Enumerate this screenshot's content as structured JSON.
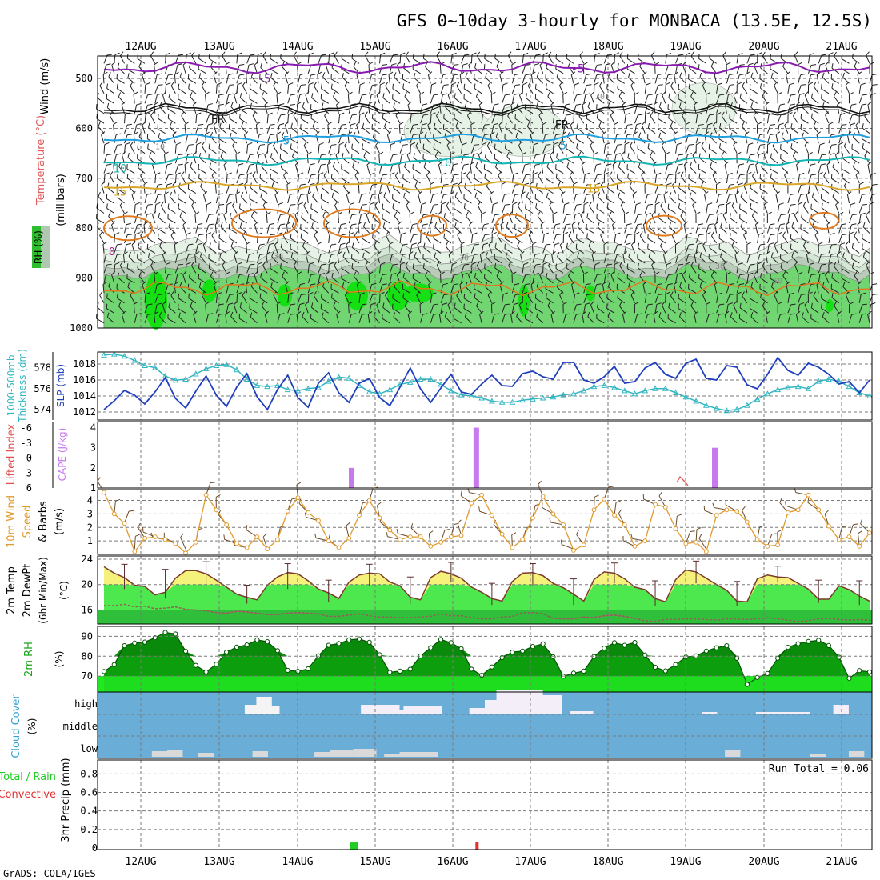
{
  "title": "GFS 0~10day 3-hourly for MONBACA (13.5E, 12.5S)",
  "footer": "GrADS: COLA/IGES",
  "dates": [
    "12AUG",
    "13AUG",
    "14AUG",
    "15AUG",
    "16AUG",
    "17AUG",
    "18AUG",
    "19AUG",
    "20AUG",
    "21AUG"
  ],
  "colors": {
    "rh_dark": "#2dbd2d",
    "rh_mid": "#71d671",
    "rh_light": "#e6f2e6",
    "cloud_bg": "#6aadd6",
    "cloud_fill": "#d9d9d9",
    "high_cloud": "#f4eef8",
    "cape": "#c779f0",
    "slp": "#1f3fbf",
    "thickness": "#33b6c2",
    "wind10": "#e09a2d",
    "temp_fill": "#4de84d",
    "rh2_dark": "#0c9e0c",
    "rh2_light": "#22e622"
  },
  "chart_data": [
    {
      "id": "upper_air",
      "type": "heatmap",
      "ylabel_parts": [
        "Wind (m/s)",
        "Temperature (°C)",
        "RH (%)"
      ],
      "ylabel_units": "(millibars)",
      "y_ticks": [
        "500",
        "600",
        "700",
        "800",
        "900",
        "1000"
      ],
      "ylim": [
        455,
        1000
      ],
      "rh_legend_label": "RH (%)",
      "contour_labels": {
        "purple": [
          "-5",
          "-5"
        ],
        "freezing": [
          "FR",
          "FR"
        ],
        "blue": [
          "5",
          "5"
        ],
        "teal": [
          "10",
          "10"
        ],
        "gold": [
          "15",
          "15"
        ],
        "rh_gray": [
          "30",
          "30",
          "50",
          "30",
          "50",
          "10",
          "30"
        ],
        "lowest": "0"
      }
    },
    {
      "id": "slp_thickness",
      "type": "line",
      "ylabel_left": [
        "1000-500mb",
        "Thickness (dm)"
      ],
      "ylabel_right": "SLP (mb)",
      "thickness_ticks": [
        "578",
        "576",
        "574"
      ],
      "slp_ticks": [
        "1018",
        "1016",
        "1014",
        "1012"
      ],
      "thickness_ylim": [
        573,
        579.5
      ],
      "slp_ylim": [
        1011,
        1019.5
      ],
      "series": [
        {
          "name": "SLP (mb)",
          "axis": "slp",
          "values": [
            1012.3,
            1013.4,
            1014.7,
            1014.1,
            1013.0,
            1014.5,
            1016.3,
            1013.7,
            1012.5,
            1014.6,
            1016.5,
            1014.1,
            1012.7,
            1015.1,
            1016.8,
            1013.9,
            1012.3,
            1014.8,
            1016.6,
            1013.8,
            1012.6,
            1015.6,
            1016.9,
            1014.4,
            1013.2,
            1015.6,
            1016.2,
            1013.8,
            1012.8,
            1015.1,
            1017.5,
            1014.9,
            1013.2,
            1015.0,
            1016.7,
            1014.5,
            1014.2,
            1015.5,
            1016.6,
            1015.3,
            1015.2,
            1016.8,
            1017.1,
            1016.4,
            1016.1,
            1018.2,
            1018.2,
            1016.0,
            1015.6,
            1016.4,
            1017.7,
            1015.6,
            1015.8,
            1017.5,
            1018.2,
            1016.7,
            1016.2,
            1018.1,
            1018.6,
            1016.2,
            1016.0,
            1017.8,
            1017.6,
            1015.4,
            1014.9,
            1016.7,
            1018.8,
            1017.2,
            1016.6,
            1018.1,
            1017.6,
            1016.7,
            1015.5,
            1015.8,
            1014.4,
            1016.0
          ]
        },
        {
          "name": "1000-500mb Thickness (dm)",
          "axis": "thickness",
          "values": [
            579.2,
            579.3,
            579.1,
            578.7,
            578.2,
            578.0,
            577.2,
            576.8,
            576.9,
            577.4,
            577.9,
            578.2,
            578.3,
            577.8,
            576.9,
            576.3,
            576.2,
            576.3,
            575.9,
            575.8,
            576.0,
            576.1,
            576.7,
            577.1,
            577.0,
            576.3,
            575.7,
            575.5,
            575.9,
            576.4,
            576.6,
            576.9,
            576.9,
            576.4,
            575.8,
            575.4,
            575.3,
            575.1,
            574.8,
            574.7,
            574.7,
            574.9,
            575.0,
            575.1,
            575.2,
            575.4,
            575.5,
            575.8,
            576.2,
            576.3,
            576.1,
            575.8,
            575.5,
            575.8,
            576.0,
            576.0,
            575.6,
            575.2,
            574.8,
            574.4,
            574.1,
            573.9,
            574.0,
            574.4,
            575.0,
            575.5,
            575.9,
            576.1,
            576.2,
            576.0,
            576.7,
            576.9,
            576.7,
            576.2,
            575.6,
            575.3
          ]
        }
      ]
    },
    {
      "id": "cape_li",
      "type": "bar",
      "ylabel_left": "Lifted Index",
      "ylabel_right": "CAPE (J/kg)",
      "li_ticks": [
        "-6",
        "-3",
        "0",
        "3",
        "6"
      ],
      "cape_ticks": [
        "4",
        "3",
        "2",
        "1"
      ],
      "cape_ylim": [
        1,
        4.3
      ],
      "bars": [
        {
          "x": 32.8,
          "value": 2.0
        },
        {
          "x": 48.9,
          "value": 4.0
        },
        {
          "x": 79.7,
          "value": 3.0
        }
      ]
    },
    {
      "id": "wind10m",
      "type": "line",
      "ylabel_lines": [
        "10m Wind",
        "Speed",
        "& Barbs",
        "(m/s)"
      ],
      "y_ticks": [
        "4",
        "3",
        "2",
        "1"
      ],
      "ylim": [
        0,
        4.8
      ],
      "series": [
        {
          "name": "10m Wind Speed",
          "values": [
            4.6,
            3.0,
            2.3,
            0.2,
            1.2,
            1.3,
            1.1,
            0.8,
            0.1,
            0.9,
            4.4,
            3.3,
            2.2,
            0.8,
            0.5,
            1.3,
            0.4,
            1.1,
            3.2,
            4.2,
            3.1,
            2.5,
            1.0,
            0.5,
            1.2,
            2.9,
            4.0,
            2.7,
            1.8,
            1.1,
            1.3,
            1.3,
            0.6,
            0.9,
            1.3,
            1.4,
            3.8,
            4.4,
            2.9,
            1.5,
            0.5,
            1.1,
            2.7,
            4.3,
            3.0,
            2.2,
            0.3,
            0.7,
            3.3,
            4.1,
            2.9,
            2.2,
            0.6,
            1.0,
            3.7,
            3.5,
            1.9,
            0.8,
            0.9,
            0.2,
            2.9,
            3.3,
            3.2,
            2.4,
            1.1,
            0.6,
            0.7,
            3.1,
            3.3,
            4.4,
            3.3,
            2.1,
            1.1,
            1.3,
            0.6,
            1.6
          ]
        }
      ]
    },
    {
      "id": "temp2m",
      "type": "area",
      "ylabel_lines": [
        "2m Temp",
        "2m DewPt",
        "(6hr Min/Max)"
      ],
      "ylabel_units": "(°C)",
      "y_ticks": [
        "24",
        "20",
        "16"
      ],
      "ylim": [
        13.8,
        24.5
      ],
      "series": [
        {
          "name": "2m Temp",
          "values": [
            22.8,
            21.8,
            21.1,
            19.9,
            19.7,
            18.4,
            18.8,
            21.0,
            22.2,
            22.2,
            21.7,
            20.7,
            19.6,
            18.5,
            18.0,
            17.6,
            19.9,
            21.2,
            21.9,
            21.7,
            20.6,
            19.3,
            18.7,
            17.8,
            20.4,
            21.5,
            21.8,
            21.7,
            20.4,
            19.8,
            18.0,
            17.6,
            21.1,
            22.1,
            21.7,
            21.0,
            19.6,
            18.8,
            17.8,
            17.4,
            20.5,
            21.8,
            21.9,
            21.4,
            20.2,
            19.5,
            18.5,
            17.4,
            20.8,
            22.0,
            21.8,
            20.9,
            19.6,
            19.2,
            17.8,
            17.3,
            20.8,
            22.3,
            22.0,
            21.0,
            20.0,
            19.1,
            17.4,
            17.3,
            20.9,
            21.5,
            21.2,
            21.1,
            20.2,
            19.3,
            17.7,
            17.7,
            19.8,
            19.2,
            18.2,
            17.4
          ]
        },
        {
          "name": "2m DewPt",
          "values": [
            16.7,
            16.7,
            16.9,
            16.5,
            16.6,
            16.2,
            16.3,
            16.5,
            16.1,
            16.0,
            15.9,
            15.6,
            15.5,
            15.8,
            15.7,
            15.5,
            15.3,
            15.3,
            15.5,
            15.6,
            15.5,
            15.4,
            15.0,
            15.0,
            15.2,
            15.4,
            15.1,
            14.9,
            14.9,
            14.8,
            14.8,
            14.9,
            15.0,
            15.4,
            15.1,
            15.1,
            14.8,
            14.6,
            14.6,
            14.9,
            15.0,
            15.6,
            15.6,
            15.4,
            14.7,
            14.6,
            14.6,
            14.9,
            14.8,
            15.1,
            15.2,
            15.0,
            14.7,
            14.3,
            14.2,
            14.5,
            14.5,
            14.6,
            14.6,
            14.5,
            14.4,
            14.6,
            14.6,
            14.5,
            14.6,
            14.8,
            14.6,
            14.4,
            14.2,
            14.3,
            14.6,
            14.7,
            14.5,
            14.4,
            14.5,
            14.4
          ]
        }
      ]
    },
    {
      "id": "rh2m",
      "type": "area",
      "ylabel": "2m RH",
      "ylabel_units": "(%)",
      "y_ticks": [
        "90",
        "80",
        "70"
      ],
      "ylim": [
        62,
        95
      ],
      "series": [
        {
          "name": "2m RH",
          "values": [
            72.3,
            75.8,
            85.3,
            86.6,
            87.1,
            89.3,
            92.0,
            91.2,
            82.5,
            75.4,
            72.1,
            76.0,
            82.1,
            84.6,
            85.7,
            88.2,
            87.3,
            82.8,
            72.9,
            72.4,
            73.7,
            80.2,
            85.5,
            86.4,
            88.2,
            88.7,
            87.0,
            80.7,
            71.9,
            72.5,
            73.5,
            80.1,
            84.3,
            88.4,
            86.8,
            83.8,
            73.5,
            70.4,
            74.6,
            79.3,
            82.1,
            82.6,
            84.9,
            86.2,
            79.7,
            69.9,
            71.5,
            72.5,
            79.9,
            84.1,
            86.8,
            85.5,
            86.9,
            80.6,
            74.5,
            72.6,
            75.8,
            79.6,
            80.2,
            82.6,
            84.3,
            85.3,
            79.0,
            65.8,
            69.3,
            71.3,
            79.0,
            84.5,
            86.3,
            87.4,
            88.0,
            85.4,
            79.5,
            68.9,
            72.8,
            72.1
          ]
        }
      ]
    },
    {
      "id": "cloud_cover",
      "type": "bar",
      "ylabel": "Cloud Cover",
      "ylabel_units": "(%)",
      "levels": [
        "high",
        "middle",
        "low"
      ]
    },
    {
      "id": "precip",
      "type": "bar",
      "ylabel_left": [
        "Total / Rain",
        "Convective"
      ],
      "ylabel": "3hr Precip (mm)",
      "y_ticks": [
        "0.8",
        "0.6",
        "0.4",
        "0.2",
        "0"
      ],
      "ylim": [
        0,
        0.95
      ],
      "run_total": "Run Total = 0.06",
      "bars": [
        {
          "x": 33.1,
          "value": 0.06,
          "kind": "total"
        },
        {
          "x": 49.0,
          "value": 0.06,
          "kind": "convective"
        }
      ]
    }
  ]
}
